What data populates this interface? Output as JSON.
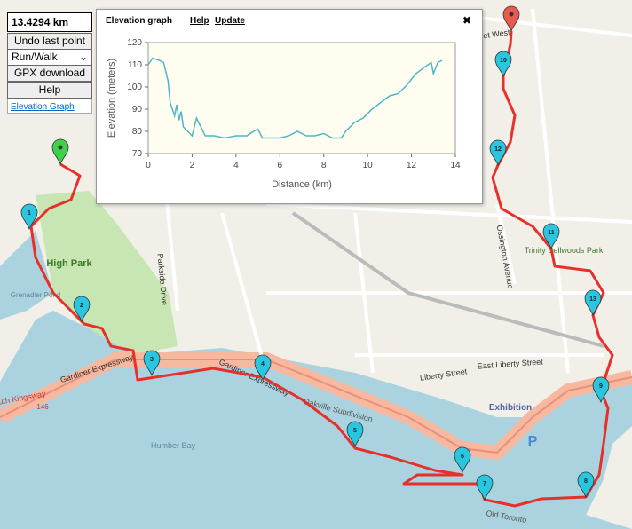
{
  "controls": {
    "distance": "13.4294 km",
    "undo": "Undo last point",
    "mode": "Run/Walk",
    "gpx": "GPX download",
    "help": "Help",
    "graph_link": "Elevation Graph"
  },
  "panel": {
    "title": "Elevation graph",
    "help": "Help",
    "update": "Update",
    "close": "✖"
  },
  "chart_data": {
    "type": "line",
    "x_label": "Distance (km)",
    "y_label": "Elevation (meters)",
    "x": [
      0,
      0.2,
      0.5,
      0.7,
      0.9,
      1.0,
      1.1,
      1.2,
      1.3,
      1.4,
      1.5,
      1.6,
      1.8,
      2.0,
      2.2,
      2.4,
      2.6,
      3.0,
      3.5,
      4.0,
      4.5,
      4.8,
      5.0,
      5.2,
      5.6,
      6.0,
      6.4,
      6.8,
      7.2,
      7.6,
      8.0,
      8.4,
      8.8,
      9.0,
      9.4,
      9.8,
      10.2,
      10.6,
      11.0,
      11.4,
      11.8,
      12.2,
      12.6,
      12.9,
      13.0,
      13.2,
      13.4
    ],
    "series": [
      {
        "color": "#4db6c8",
        "values": [
          110,
          113,
          112,
          111,
          103,
          93,
          90,
          87,
          92,
          85,
          89,
          82,
          80,
          78,
          86,
          82,
          78,
          78,
          77,
          78,
          78,
          80,
          81,
          77,
          77,
          77,
          78,
          80,
          78,
          78,
          79,
          77,
          77,
          80,
          84,
          86,
          90,
          93,
          96,
          97,
          101,
          106,
          109,
          111,
          106,
          111,
          112
        ]
      }
    ],
    "xlim": [
      0,
      14
    ],
    "ylim": [
      70,
      120
    ],
    "xticks": [
      0,
      2,
      4,
      6,
      8,
      10,
      12,
      14
    ],
    "yticks": [
      70,
      80,
      90,
      100,
      110,
      120
    ]
  },
  "map": {
    "markers": [
      "1",
      "2",
      "3",
      "4",
      "5",
      "6",
      "7",
      "8",
      "9",
      "10",
      "11",
      "12",
      "13"
    ],
    "labels": [
      "High Park",
      "Humber Bay",
      "Exhibition",
      "Gardiner Expressway",
      "Gardiner Expressway",
      "South Kingsway",
      "146",
      "Liberty Street",
      "East Liberty Street",
      "Ossington Avenue",
      "Parkside Drive",
      "Bloor Street West",
      "Trinity Bellwoods Park",
      "Oakville Subdivision",
      "Old Toronto",
      "Grenadier Pond",
      "P"
    ]
  }
}
